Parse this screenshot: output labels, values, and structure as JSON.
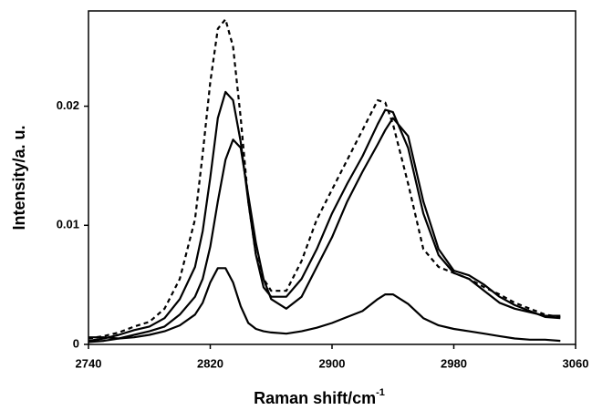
{
  "chart_data": {
    "type": "line",
    "x_label": {
      "text": "Raman shift/cm",
      "superscript": "-1"
    },
    "y_label": "Intensity/a. u.",
    "x": [
      2740,
      2750,
      2760,
      2770,
      2780,
      2790,
      2800,
      2810,
      2815,
      2820,
      2825,
      2830,
      2835,
      2840,
      2845,
      2850,
      2855,
      2860,
      2870,
      2880,
      2890,
      2900,
      2910,
      2920,
      2930,
      2935,
      2940,
      2950,
      2960,
      2970,
      2980,
      2990,
      3000,
      3010,
      3020,
      3030,
      3040,
      3050
    ],
    "series": [
      {
        "color": "#000000",
        "dash": true,
        "values": [
          0.0005,
          0.0007,
          0.001,
          0.0015,
          0.0019,
          0.003,
          0.0055,
          0.0105,
          0.016,
          0.022,
          0.0265,
          0.0273,
          0.025,
          0.019,
          0.012,
          0.0075,
          0.0055,
          0.0045,
          0.0045,
          0.007,
          0.0105,
          0.013,
          0.0155,
          0.018,
          0.0205,
          0.0203,
          0.0185,
          0.0135,
          0.008,
          0.0065,
          0.006,
          0.0055,
          0.0048,
          0.0042,
          0.0035,
          0.003,
          0.0025,
          0.0023
        ]
      },
      {
        "color": "#000000",
        "dash": false,
        "values": [
          0.0003,
          0.0005,
          0.0008,
          0.0012,
          0.0015,
          0.0022,
          0.0038,
          0.0065,
          0.0095,
          0.014,
          0.019,
          0.0212,
          0.0205,
          0.017,
          0.012,
          0.0075,
          0.0048,
          0.004,
          0.004,
          0.0055,
          0.008,
          0.011,
          0.0135,
          0.0158,
          0.0185,
          0.0197,
          0.0195,
          0.0165,
          0.011,
          0.0075,
          0.006,
          0.0055,
          0.0045,
          0.0035,
          0.003,
          0.0027,
          0.0024,
          0.0024
        ]
      },
      {
        "color": "#000000",
        "dash": false,
        "values": [
          0.0002,
          0.0003,
          0.0005,
          0.0008,
          0.0011,
          0.0015,
          0.0025,
          0.004,
          0.0055,
          0.0082,
          0.012,
          0.0155,
          0.0172,
          0.0165,
          0.0125,
          0.0085,
          0.0055,
          0.0038,
          0.003,
          0.004,
          0.0065,
          0.009,
          0.012,
          0.0145,
          0.0168,
          0.018,
          0.019,
          0.0175,
          0.012,
          0.008,
          0.0062,
          0.0058,
          0.005,
          0.004,
          0.0033,
          0.0028,
          0.0023,
          0.0022
        ]
      },
      {
        "color": "#000000",
        "dash": false,
        "values": [
          0.0006,
          0.0006,
          0.0005,
          0.0006,
          0.0008,
          0.0011,
          0.0016,
          0.0025,
          0.0035,
          0.0052,
          0.0064,
          0.0064,
          0.0052,
          0.0032,
          0.0018,
          0.0013,
          0.0011,
          0.001,
          0.0009,
          0.0011,
          0.0014,
          0.0018,
          0.0023,
          0.0028,
          0.0038,
          0.0042,
          0.0042,
          0.0034,
          0.0022,
          0.0016,
          0.0013,
          0.0011,
          0.0009,
          0.0007,
          0.0005,
          0.0004,
          0.0004,
          0.0003
        ]
      }
    ],
    "xlim": [
      2740,
      3060
    ],
    "xticks": [
      2740,
      2820,
      2900,
      2980,
      3060
    ],
    "ylim": [
      0,
      0.028
    ],
    "yticks": [
      0,
      0.01,
      0.02
    ]
  }
}
